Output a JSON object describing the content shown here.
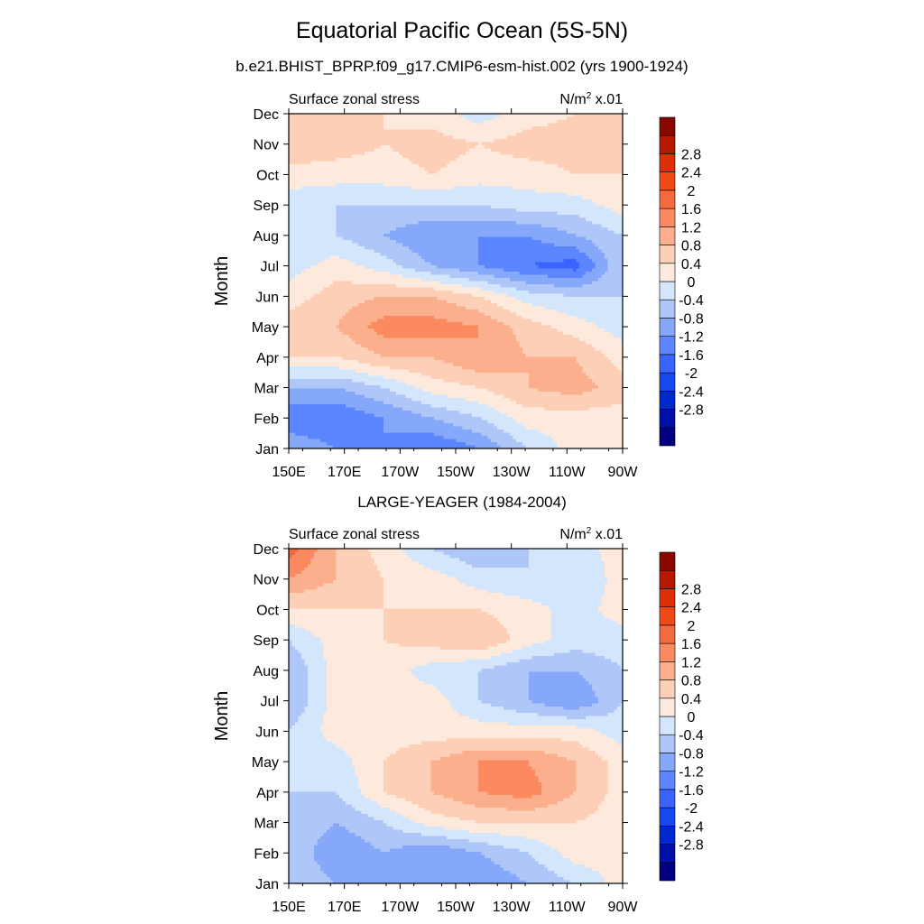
{
  "title": "Equatorial Pacific Ocean (5S-5N)",
  "subtitle": "b.e21.BHIST_BPRP.f09_g17.CMIP6-esm-hist.002 (yrs 1900-1924)",
  "colorbar": {
    "colors": [
      "#000080",
      "#0010a8",
      "#0028d0",
      "#1648f0",
      "#3a64ff",
      "#5c86ff",
      "#86a8fa",
      "#aec6f8",
      "#d4e6fc",
      "#feeadc",
      "#fdcfb6",
      "#fcaf8c",
      "#fb8a60",
      "#f46a3c",
      "#ee4a18",
      "#dc3008",
      "#b81800",
      "#880800"
    ],
    "labels": [
      "-2.8",
      "-2.4",
      "-2",
      "-1.6",
      "-1.2",
      "-0.8",
      "-0.4",
      "0",
      "0.4",
      "0.8",
      "1.2",
      "1.6",
      "2",
      "2.4",
      "2.8"
    ]
  },
  "chart_data": [
    {
      "type": "heatmap",
      "title": "",
      "left_string": "Surface zonal stress",
      "right_string": "N/m",
      "right_sup": "2",
      "right_suffix": " x.01",
      "xlabel": "",
      "ylabel": "Month",
      "x": [
        "150E",
        "170E",
        "170W",
        "150W",
        "130W",
        "110W",
        "90W"
      ],
      "y": [
        "Jan",
        "Feb",
        "Mar",
        "Apr",
        "May",
        "Jun",
        "Jul",
        "Aug",
        "Sep",
        "Oct",
        "Nov",
        "Dec"
      ],
      "z": [
        [
          -0.8,
          -1.2,
          -1.2,
          -1.6,
          -1.2,
          -0.4,
          0.2,
          0.2
        ],
        [
          -1.6,
          -1.6,
          -1.2,
          -0.8,
          -0.4,
          0.2,
          0.2,
          0.2
        ],
        [
          -0.8,
          -0.8,
          -0.4,
          0.2,
          0.4,
          0.8,
          1.0,
          0.6
        ],
        [
          0.4,
          0.4,
          0.8,
          0.8,
          1.2,
          0.8,
          0.8,
          0.2
        ],
        [
          0.6,
          0.8,
          1.4,
          1.4,
          1.2,
          0.6,
          0.2,
          -0.2
        ],
        [
          0.2,
          0.6,
          0.8,
          0.8,
          0.4,
          -0.2,
          -0.4,
          -0.4
        ],
        [
          -0.2,
          0.2,
          -0.2,
          -0.8,
          -1.2,
          -1.6,
          -1.8,
          -0.4
        ],
        [
          -0.4,
          -0.4,
          -0.8,
          -1.2,
          -1.2,
          -1.2,
          -0.8,
          -0.4
        ],
        [
          -0.2,
          -0.4,
          -0.4,
          -0.4,
          -0.4,
          -0.2,
          -0.2,
          0.2
        ],
        [
          0.2,
          0.2,
          0.2,
          0.4,
          0.2,
          0.2,
          0.4,
          0.4
        ],
        [
          0.8,
          0.6,
          0.4,
          0.6,
          0.4,
          0.6,
          0.6,
          0.4
        ],
        [
          0.4,
          0.4,
          0.4,
          0.2,
          -0.2,
          0.2,
          0.4,
          0.4
        ]
      ]
    },
    {
      "type": "heatmap",
      "title": "LARGE-YEAGER (1984-2004)",
      "left_string": "Surface zonal stress",
      "right_string": "N/m",
      "right_sup": "2",
      "right_suffix": " x.01",
      "xlabel": "",
      "ylabel": "Month",
      "x": [
        "150E",
        "170E",
        "170W",
        "150W",
        "130W",
        "110W",
        "90W"
      ],
      "y": [
        "Jan",
        "Feb",
        "Mar",
        "Apr",
        "May",
        "Jun",
        "Jul",
        "Aug",
        "Sep",
        "Oct",
        "Nov",
        "Dec"
      ],
      "z": [
        [
          -0.4,
          -0.8,
          -0.8,
          -1.2,
          -1.2,
          -0.8,
          -0.4,
          0.2
        ],
        [
          -0.4,
          -1.2,
          -0.8,
          -1.2,
          -0.8,
          -0.4,
          0.2,
          0.2
        ],
        [
          -0.4,
          -0.8,
          -0.4,
          0.2,
          0.4,
          0.4,
          0.4,
          0.2
        ],
        [
          -0.4,
          -0.4,
          0.4,
          0.8,
          1.2,
          1.4,
          0.8,
          0.2
        ],
        [
          -0.4,
          -0.2,
          0.4,
          0.8,
          1.2,
          1.2,
          0.8,
          0.2
        ],
        [
          -0.4,
          0.2,
          0.2,
          0.2,
          0.2,
          0.2,
          0.2,
          -0.2
        ],
        [
          -0.8,
          0.2,
          0.2,
          0.2,
          -0.4,
          -0.8,
          -1.2,
          -0.4
        ],
        [
          -0.8,
          0.2,
          0.2,
          -0.2,
          -0.4,
          -0.8,
          -0.8,
          -0.4
        ],
        [
          -0.4,
          0.2,
          0.4,
          0.6,
          0.8,
          0.2,
          -0.2,
          -0.2
        ],
        [
          0.4,
          0.4,
          0.4,
          0.4,
          0.4,
          0.2,
          -0.2,
          0.2
        ],
        [
          1.2,
          0.8,
          0.4,
          0.2,
          -0.2,
          -0.4,
          -0.4,
          0.2
        ],
        [
          1.8,
          0.8,
          0.2,
          -0.4,
          -0.8,
          -0.4,
          -0.2,
          0.2
        ]
      ]
    }
  ]
}
